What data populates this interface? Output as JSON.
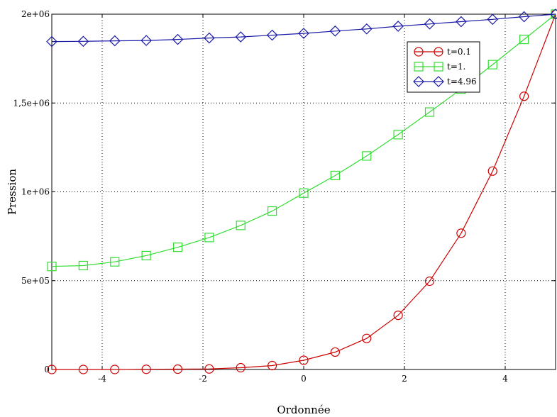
{
  "chart_data": {
    "type": "line",
    "title": "",
    "xlabel": "Ordonnée",
    "ylabel": "Pression",
    "xlim": [
      -5,
      5
    ],
    "ylim": [
      0,
      2000000
    ],
    "grid": true,
    "legend_position": "top-right",
    "x_ticks": [
      {
        "value": -4,
        "label": "-4"
      },
      {
        "value": -2,
        "label": "-2"
      },
      {
        "value": 0,
        "label": "0"
      },
      {
        "value": 2,
        "label": "2"
      },
      {
        "value": 4,
        "label": "4"
      }
    ],
    "y_ticks": [
      {
        "value": 0,
        "label": "0"
      },
      {
        "value": 500000,
        "label": "5e+05"
      },
      {
        "value": 1000000,
        "label": "1e+06"
      },
      {
        "value": 1500000,
        "label": "1,5e+06"
      },
      {
        "value": 2000000,
        "label": "2e+06"
      }
    ],
    "x": [
      -5,
      -4.375,
      -3.75,
      -3.125,
      -2.5,
      -1.875,
      -1.25,
      -0.625,
      0,
      0.625,
      1.25,
      1.875,
      2.5,
      3.125,
      3.75,
      4.375,
      5
    ],
    "series": [
      {
        "name": "t=0.1",
        "color": "#cc0000",
        "marker": "circle",
        "values": [
          0,
          0,
          0,
          1000,
          2000,
          3000,
          10000,
          22000,
          52000,
          98000,
          175000,
          305000,
          497000,
          767000,
          1117000,
          1538000,
          2000000
        ]
      },
      {
        "name": "t=1.",
        "color": "#33dd33",
        "marker": "square",
        "values": [
          580000,
          585000,
          606000,
          641000,
          688000,
          743000,
          811000,
          892000,
          993000,
          1092000,
          1202000,
          1322000,
          1449000,
          1578000,
          1716000,
          1858000,
          2000000
        ]
      },
      {
        "name": "t=4.96",
        "color": "#1a1aa6",
        "marker": "diamond",
        "values": [
          1846000,
          1847000,
          1850000,
          1852000,
          1858000,
          1866000,
          1872000,
          1882000,
          1892000,
          1905000,
          1917000,
          1932000,
          1945000,
          1958000,
          1971000,
          1986000,
          2000000
        ]
      }
    ]
  }
}
